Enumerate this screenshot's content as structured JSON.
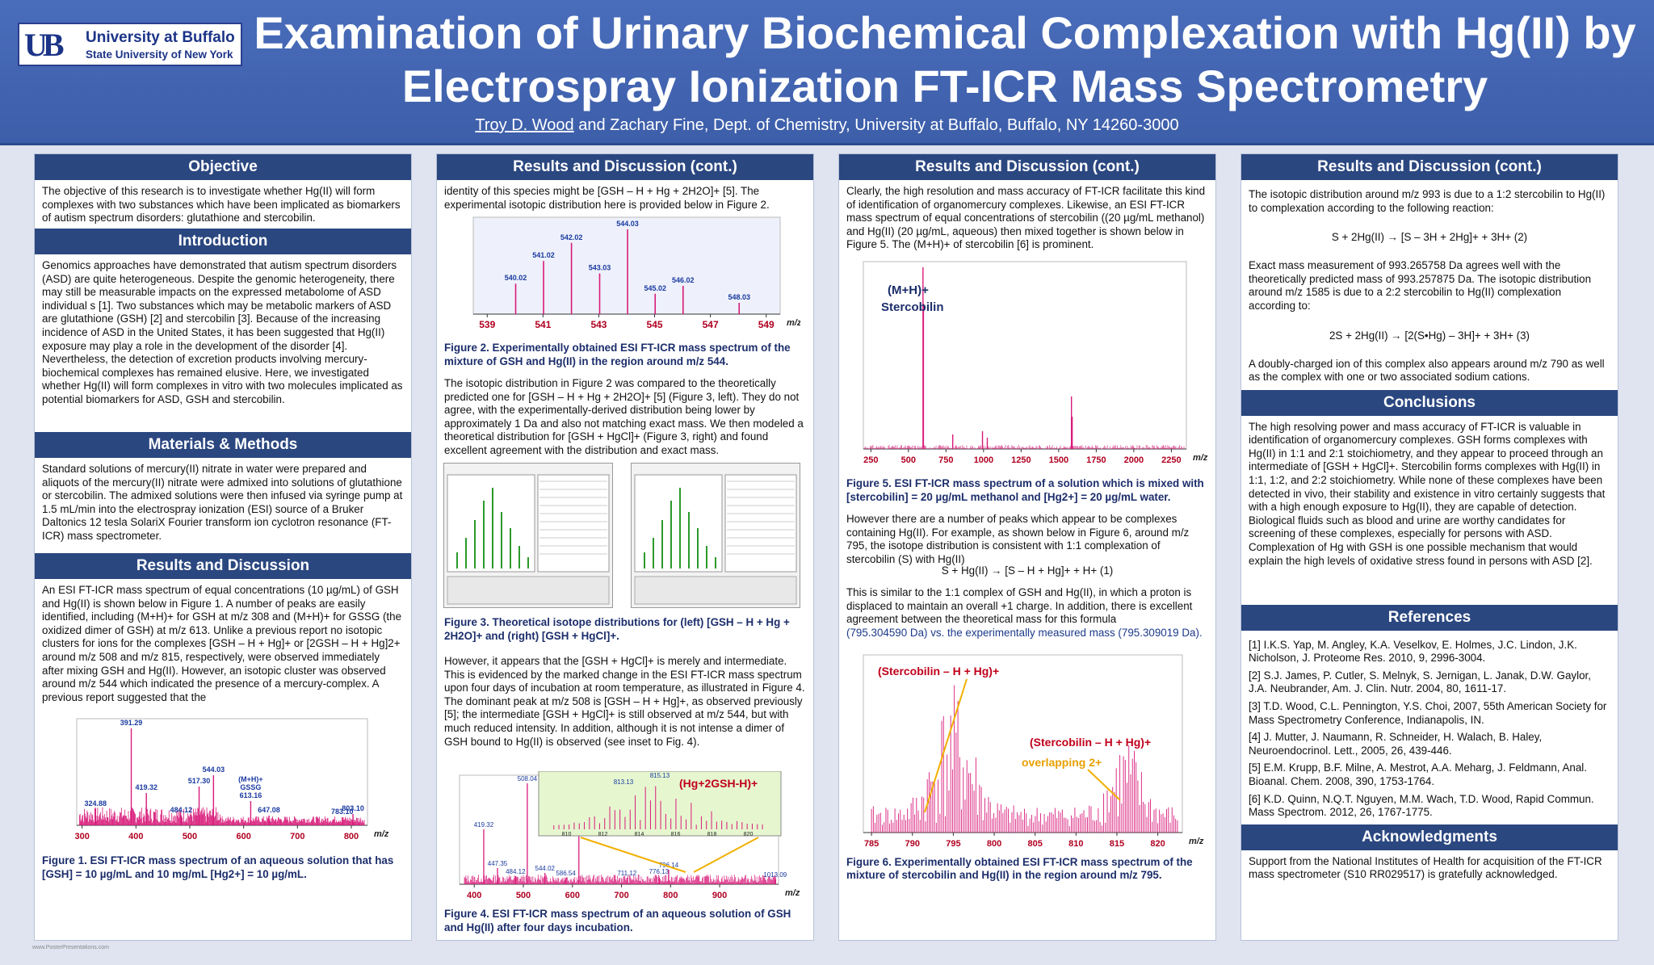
{
  "header": {
    "logo_line1": "University at Buffalo",
    "logo_line2": "State University of New York",
    "logo_mark": "UB",
    "title": "Examination of Urinary Biochemical Complexation with Hg(II) by Electrospray Ionization FT-ICR Mass Spectrometry",
    "author_main": "Troy D. Wood",
    "author_rest": " and Zachary Fine, Dept. of Chemistry, University at Buffalo, Buffalo, NY  14260-3000"
  },
  "col1": {
    "objective_title": "Objective",
    "objective_text": "The objective of this research is to investigate whether Hg(II) will form complexes with two substances which have been implicated as biomarkers of autism spectrum disorders:  glutathione and stercobilin.",
    "intro_title": "Introduction",
    "intro_text": "Genomics approaches have demonstrated that autism spectrum disorders (ASD) are quite heterogeneous.  Despite the genomic heterogeneity, there may still be measurable impacts on the expressed metabolome of ASD individual s [1].  Two substances which may be metabolic markers of ASD are glutathione (GSH) [2] and stercobilin [3]. Because of the increasing incidence of ASD in the United States, it has been suggested that Hg(II) exposure may play a role in the development of the disorder [4].  Nevertheless, the detection of excretion products involving mercury-biochemical complexes has remained elusive.  Here, we investigated whether  Hg(II) will form complexes in vitro with two molecules implicated as potential biomarkers for ASD, GSH and stercobilin.",
    "methods_title": "Materials & Methods",
    "methods_text": "Standard solutions of mercury(II) nitrate in water were prepared and aliquots of the mercury(II) nitrate were admixed into solutions of glutathione or stercobilin.  The admixed solutions were then infused via syringe pump at 1.5 mL/min into the electrospray ionization (ESI) source of a Bruker Daltonics 12 tesla SolariX Fourier transform ion cyclotron resonance (FT-ICR) mass spectrometer.",
    "results_title": "Results and Discussion",
    "results_text": "An ESI FT-ICR mass spectrum of equal concentrations (10 µg/mL) of GSH and Hg(II) is shown below in Figure 1.  A number of peaks are easily identified, including (M+H)+ for GSH at m/z 308 and (M+H)+ for GSSG (the oxidized dimer of GSH) at m/z 613.  Unlike a previous report no isotopic clusters for ions for the complexes [GSH – H + Hg]+ or [2GSH – H + Hg]2+ around m/z 508 and m/z 815, respectively, were observed immediately after mixing GSH and Hg(II).  However, an isotopic cluster was observed around m/z 544 which indicated the presence of a mercury-complex.  A previous report suggested that the",
    "fig1_caption": "Figure 1.  ESI FT-ICR mass spectrum of an aqueous solution that has [GSH] = 10 µg/mL and 10 mg/mL [Hg2+] = 10 µg/mL."
  },
  "col2": {
    "title": "Results and Discussion (cont.)",
    "text1": "identity of this species might be [GSH – H + Hg + 2H2O]+ [5].  The experimental isotopic distribution here is provided below in Figure 2.",
    "fig2_caption": "Figure 2.  Experimentally obtained ESI FT-ICR mass spectrum of the mixture of GSH and Hg(II) in the region around m/z 544.",
    "text2": "The isotopic distribution in Figure 2 was compared to the theoretically predicted one for [GSH – H + Hg + 2H2O]+ [5] (Figure 3, left).  They do not agree, with the experimentally-derived distribution being lower by approximately 1 Da and also not matching exact mass.  We then modeled a theoretical distribution for [GSH + HgCl]+ (Figure 3, right) and found excellent agreement with the distribution and exact mass.",
    "fig3_caption": "Figure 3.  Theoretical isotope distributions for (left) [GSH – H + Hg + 2H2O]+ and (right) [GSH + HgCl]+.",
    "text3": "However, it appears that the [GSH + HgCl]+ is merely and intermediate. This is evidenced by the marked change in the ESI FT-ICR mass spectrum upon four days of incubation at room temperature, as illustrated in Figure 4.  The dominant peak at m/z 508 is [GSH – H + Hg]+, as observed previously [5]; the intermediate [GSH + HgCl]+ is still observed at m/z 544, but with much reduced intensity.  In addition, although it is not intense a dimer of GSH bound to Hg(II) is observed (see inset to Fig. 4).",
    "fig4_caption": "Figure 4.  ESI FT-ICR mass spectrum of an aqueous solution of GSH and Hg(II) after four days incubation.",
    "fig4_inset_label": "(Hg+2GSH-H)+"
  },
  "col3": {
    "title": "Results and Discussion (cont.)",
    "text1": "Clearly, the high resolution and mass accuracy of FT-ICR facilitate this kind of identification of organomercury complexes.  Likewise, an ESI FT-ICR mass spectrum of equal concentrations of stercobilin ((20 µg/mL methanol) and Hg(II) (20 µg/mL, aqueous) then mixed together is shown below in Figure 5.  The (M+H)+ of stercobilin [6] is prominent.",
    "fig5_label1": "(M+H)+",
    "fig5_label2": "Stercobilin",
    "fig5_caption": "Figure 5.  ESI FT-ICR mass spectrum of a solution which is mixed with [stercobilin] = 20 µg/mL methanol and [Hg2+] = 20 µg/mL water.",
    "text2": "However there are a number of peaks which appear to be complexes containing Hg(II).  For example,  as shown below in Figure 6, around m/z 795, the isotope distribution is consistent with 1:1 complexation of stercobilin (S) with Hg(II)",
    "eq1": "S + Hg(II) → [S – H + Hg]+ + H+    (1)",
    "text3": "This is similar to the 1:1 complex of GSH and Hg(II), in which a proton is displaced to maintain an overall +1 charge.  In addition, there is excellent agreement between the theoretical mass for this formula",
    "text3b": "(795.304590 Da) vs. the experimentally measured mass (795.309019 Da).",
    "fig6_label1": "(Stercobilin – H + Hg)+",
    "fig6_label2": "(Stercobilin – H + Hg)+",
    "fig6_label3": "overlapping 2+",
    "fig6_caption": "Figure 6.  Experimentally obtained ESI FT-ICR mass spectrum of the mixture of stercobilin and Hg(II) in the region around m/z 795."
  },
  "col4": {
    "title": "Results and Discussion (cont.)",
    "text1": "The isotopic distribution around m/z 993 is due to a 1:2 stercobilin to Hg(II) to complexation according to the following reaction:",
    "eq2": "S + 2Hg(II) → [S – 3H + 2Hg]+ + 3H+     (2)",
    "text2": "Exact mass measurement of 993.265758 Da agrees well with the theoretically predicted mass of 993.257875 Da.  The isotopic distribution around m/z 1585 is due to a 2:2 stercobilin to Hg(II) complexation according to:",
    "eq3": "2S + 2Hg(II) → [2(S•Hg) – 3H]+ + 3H+      (3)",
    "text3": "A doubly-charged ion of this complex also appears around m/z 790 as well as the complex with one or two associated sodium cations.",
    "conclusions_title": "Conclusions",
    "conclusions_text": "The high resolving power and mass accuracy of FT-ICR is valuable in identification of organomercury complexes.  GSH forms complexes with Hg(II) in 1:1 and 2:1 stoichiometry, and they appear to proceed through an intermediate of [GSH + HgCl]+.  Stercobilin forms complexes with Hg(II) in 1:1, 1:2, and 2:2 stoichiometry.  While none of these complexes have been detected in vivo, their stability and existence in vitro certainly suggests that with a high enough exposure to Hg(II), they are capable of detection.  Biological fluids such as blood and urine are worthy candidates for screening of these complexes, especially for persons with ASD.  Complexation of Hg with GSH is one possible mechanism that would explain the high levels of oxidative stress found in persons with ASD [2].",
    "references_title": "References",
    "refs": [
      "[1]  I.K.S. Yap, M. Angley, K.A. Veselkov, E. Holmes, J.C. Lindon, J.K. Nicholson, J. Proteome Res. 2010, 9, 2996-3004.",
      "[2]  S.J. James, P. Cutler, S. Melnyk, S. Jernigan, L. Janak, D.W. Gaylor, J.A. Neubrander, Am. J. Clin. Nutr. 2004, 80, 1611-17.",
      "[3]  T.D. Wood, C.L. Pennington, Y.S. Choi, 2007, 55th American Society for Mass Spectrometry Conference, Indianapolis, IN.",
      "[4]  J. Mutter, J. Naumann, R. Schneider, H. Walach, B. Haley, Neuroendocrinol. Lett., 2005, 26, 439-446.",
      "[5]  E.M. Krupp, B.F. Milne, A. Mestrot, A.A. Meharg, J. Feldmann, Anal. Bioanal. Chem. 2008, 390, 1753-1764.",
      "[6]  K.D. Quinn, N.Q.T. Nguyen, M.M. Wach, T.D. Wood, Rapid Commun. Mass Spectrom. 2012, 26, 1767-1775."
    ],
    "ack_title": "Acknowledgments",
    "ack_text": "Support from the National Institutes of Health for acquisition of the FT-ICR mass spectrometer (S10 RR029517) is gratefully acknowledged."
  },
  "footer": "www.PosterPresentations.com",
  "chart_data": [
    {
      "type": "bar",
      "id": "fig1",
      "xlabel": "m/z",
      "x_ticks": [
        300,
        400,
        500,
        600,
        700,
        800
      ],
      "xlim": [
        290,
        830
      ],
      "labeled_peaks": [
        {
          "x": 324.88,
          "label": "324.88"
        },
        {
          "x": 391.29,
          "label": "391.29"
        },
        {
          "x": 419.32,
          "label": "419.32"
        },
        {
          "x": 484.12,
          "label": "484.12"
        },
        {
          "x": 517.3,
          "label": "517.30"
        },
        {
          "x": 544.03,
          "label": "544.03"
        },
        {
          "x": 613.16,
          "label": "(M+H)+ GSSG 613.16"
        },
        {
          "x": 647.08,
          "label": "647.08"
        },
        {
          "x": 783.1,
          "label": "783.10"
        },
        {
          "x": 803.1,
          "label": "803.10"
        }
      ]
    },
    {
      "type": "bar",
      "id": "fig2",
      "xlabel": "m/z",
      "x_ticks": [
        539,
        541,
        543,
        545,
        547,
        549
      ],
      "xlim": [
        538.5,
        549.5
      ],
      "peaks": [
        {
          "x": 540.02,
          "y": 0.27
        },
        {
          "x": 541.02,
          "y": 0.47
        },
        {
          "x": 542.02,
          "y": 0.63
        },
        {
          "x": 543.03,
          "y": 0.36
        },
        {
          "x": 544.03,
          "y": 0.75
        },
        {
          "x": 545.02,
          "y": 0.18
        },
        {
          "x": 546.02,
          "y": 0.25
        },
        {
          "x": 548.03,
          "y": 0.1
        }
      ]
    },
    {
      "type": "bar",
      "id": "fig4",
      "xlabel": "m/z",
      "x_ticks": [
        400,
        500,
        600,
        700,
        800,
        900
      ],
      "xlim": [
        370,
        1020
      ],
      "labeled_peaks": [
        {
          "x": 419.32,
          "label": "419.32"
        },
        {
          "x": 447.35,
          "label": "447.35"
        },
        {
          "x": 484.12,
          "label": "484.12"
        },
        {
          "x": 508.04,
          "label": "508.04"
        },
        {
          "x": 544.02,
          "label": "544.02"
        },
        {
          "x": 586.54,
          "label": "586.54"
        },
        {
          "x": 613.16,
          "label": "613.16"
        },
        {
          "x": 711.12,
          "label": "711.12"
        },
        {
          "x": 776.13,
          "label": "776.13"
        },
        {
          "x": 796.14,
          "label": "796.14"
        },
        {
          "x": 1013.09,
          "label": "1013.09"
        }
      ],
      "inset": {
        "x_ticks": [
          810,
          812,
          814,
          816,
          818,
          820
        ],
        "labeled_peaks": [
          {
            "x": 813.13,
            "label": "813.13"
          },
          {
            "x": 815.13,
            "label": "815.13"
          }
        ]
      }
    },
    {
      "type": "bar",
      "id": "fig5",
      "xlabel": "m/z",
      "x_ticks": [
        250,
        500,
        750,
        1000,
        1250,
        1500,
        1750,
        2000,
        2250
      ],
      "xlim": [
        200,
        2350
      ]
    },
    {
      "type": "bar",
      "id": "fig6",
      "xlabel": "m/z",
      "x_ticks": [
        785,
        790,
        795,
        800,
        805,
        810,
        815,
        820
      ],
      "xlim": [
        784,
        823
      ]
    }
  ]
}
